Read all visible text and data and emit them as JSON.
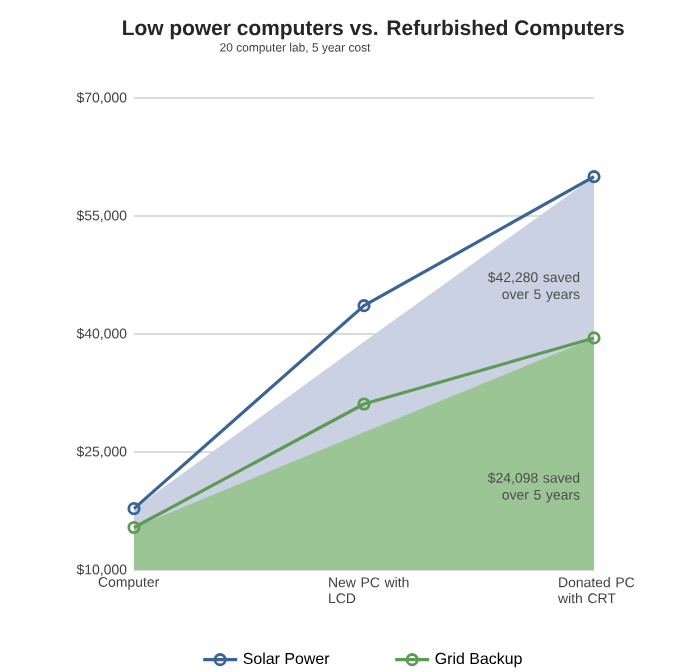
{
  "chart_data": {
    "type": "line",
    "title": "Low power computers vs. Refurbished Computers",
    "subtitle": "20 computer lab, 5 year cost",
    "categories": [
      "Computer",
      "New PC with LCD",
      "Donated PC with CRT"
    ],
    "series": [
      {
        "type": "area",
        "color": "#c9d1e2",
        "values": [
          17800,
          39000,
          60000
        ]
      },
      {
        "type": "area",
        "color": "#9cc596",
        "values": [
          15400,
          27500,
          39500
        ]
      },
      {
        "name": "Solar Power",
        "color": "#3b6496",
        "marker": "circle",
        "values": [
          17800,
          43600,
          60000
        ]
      },
      {
        "name": "Grid Backup",
        "color": "#5e9a55",
        "marker": "circle",
        "values": [
          15400,
          31100,
          39500
        ]
      }
    ],
    "ylim": [
      10000,
      70000
    ],
    "yticks": [
      {
        "value": 10000,
        "label": "$10,000"
      },
      {
        "value": 25000,
        "label": "$25,000"
      },
      {
        "value": 40000,
        "label": "$40,000"
      },
      {
        "value": 55000,
        "label": "$55,000"
      },
      {
        "value": 70000,
        "label": "$70,000"
      }
    ],
    "annotations": [
      "$42,280 saved over 5 years",
      "$24,098 saved over 5 years"
    ],
    "grid": "y",
    "legend": "bottom",
    "line_style": "solid"
  }
}
